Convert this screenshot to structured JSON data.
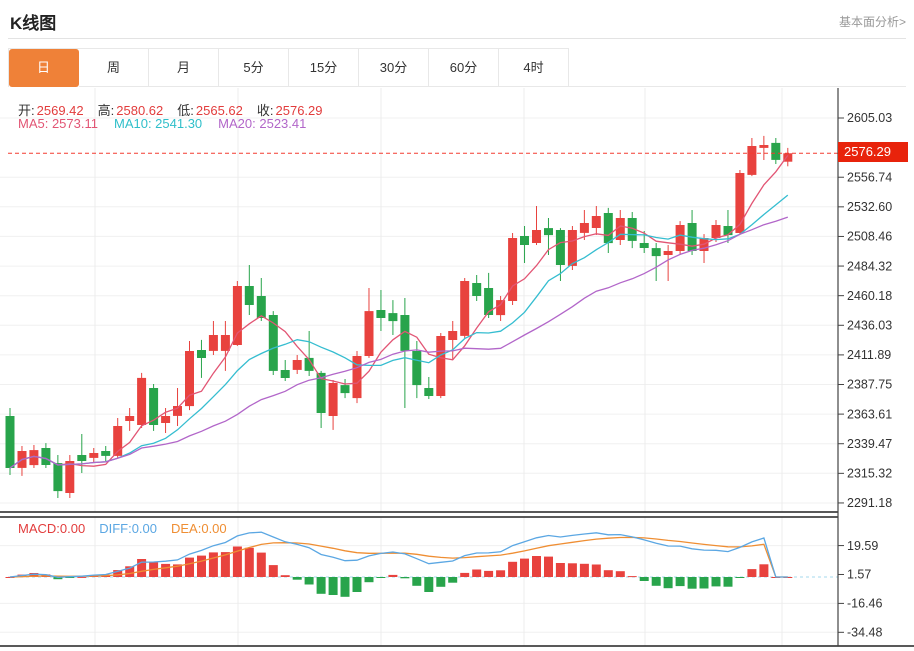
{
  "header": {
    "title": "K线图",
    "link": "基本面分析>"
  },
  "tabs": {
    "items": [
      "日",
      "周",
      "月",
      "5分",
      "15分",
      "30分",
      "60分",
      "4时"
    ],
    "active_index": 0,
    "active_bg": "#ef8138"
  },
  "info": {
    "ohlc": [
      {
        "label": "开:",
        "value": "2569.42"
      },
      {
        "label": "高:",
        "value": "2580.62"
      },
      {
        "label": "低:",
        "value": "2565.62"
      },
      {
        "label": "收:",
        "value": "2576.29"
      }
    ],
    "ma": [
      {
        "label": "MA5:",
        "value": "2573.11",
        "color": "#e25574"
      },
      {
        "label": "MA10:",
        "value": "2541.30",
        "color": "#2fbfca"
      },
      {
        "label": "MA20:",
        "value": "2523.41",
        "color": "#b266c9"
      }
    ]
  },
  "macd_panel": {
    "labels": [
      {
        "label": "MACD:",
        "value": "0.00",
        "color": "#e23c3c"
      },
      {
        "label": "DIFF:",
        "value": "0.00",
        "color": "#5ba7e3"
      },
      {
        "label": "DEA:",
        "value": "0.00",
        "color": "#ef8e33"
      }
    ],
    "axis_ticks": [
      "19.59",
      "1.57",
      "-16.46",
      "-34.48"
    ]
  },
  "colors": {
    "up": "#e8423e",
    "down": "#28a44b",
    "ma5": "#e25574",
    "ma10": "#35bdd0",
    "ma20": "#b266c9",
    "diff_line": "#5ba7e3",
    "dea_line": "#ef8e33",
    "current_line": "#f43b30",
    "tag_bg": "#e8230b",
    "grid": "#f0f0f0",
    "vgrid": "#ececec",
    "axis": "#444",
    "axis_text": "#333",
    "baseline_dash": "#a6d9ec",
    "panel_border": "#222"
  },
  "chart_data": {
    "type": "candlestick",
    "title": "K线图",
    "period": "日",
    "legend": [
      "MA5",
      "MA10",
      "MA20",
      "MACD",
      "DIFF",
      "DEA"
    ],
    "current_price": "2576.29",
    "y_axis_ticks": [
      "2605.03",
      "2556.74",
      "2532.60",
      "2508.46",
      "2484.32",
      "2460.18",
      "2436.03",
      "2411.89",
      "2387.75",
      "2363.61",
      "2339.47",
      "2315.32",
      "2291.18"
    ],
    "macd_axis_ticks": [
      "19.59",
      "1.57",
      "-16.46",
      "-34.48"
    ],
    "candles_ohlc": [
      [
        2362.1,
        2368.6,
        2314.0,
        2319.7
      ],
      [
        2319.7,
        2337.6,
        2313.2,
        2333.5
      ],
      [
        2322.1,
        2338.4,
        2319.7,
        2334.3
      ],
      [
        2336.0,
        2340.0,
        2319.7,
        2322.1
      ],
      [
        2323.7,
        2330.3,
        2295.2,
        2300.9
      ],
      [
        2299.3,
        2330.3,
        2295.2,
        2325.4
      ],
      [
        2330.3,
        2347.4,
        2315.6,
        2325.4
      ],
      [
        2327.9,
        2336.0,
        2323.7,
        2331.9
      ],
      [
        2333.5,
        2337.6,
        2325.4,
        2329.5
      ],
      [
        2329.5,
        2360.4,
        2327.9,
        2353.9
      ],
      [
        2358.0,
        2368.6,
        2349.9,
        2362.1
      ],
      [
        2354.7,
        2397.2,
        2352.3,
        2393.1
      ],
      [
        2384.9,
        2388.2,
        2349.9,
        2354.7
      ],
      [
        2356.4,
        2368.6,
        2348.2,
        2362.1
      ],
      [
        2362.1,
        2384.9,
        2353.9,
        2370.2
      ],
      [
        2370.2,
        2423.2,
        2366.9,
        2415.1
      ],
      [
        2415.9,
        2424.1,
        2393.1,
        2409.4
      ],
      [
        2415.1,
        2439.5,
        2411.8,
        2428.1
      ],
      [
        2415.1,
        2439.5,
        2398.8,
        2428.1
      ],
      [
        2420.0,
        2472.1,
        2419.2,
        2468.1
      ],
      [
        2468.1,
        2485.2,
        2444.4,
        2452.6
      ],
      [
        2459.9,
        2474.6,
        2439.5,
        2442.0
      ],
      [
        2444.4,
        2447.6,
        2395.5,
        2398.8
      ],
      [
        2399.6,
        2407.7,
        2390.6,
        2393.1
      ],
      [
        2399.6,
        2411.8,
        2396.3,
        2407.7
      ],
      [
        2409.4,
        2431.4,
        2394.7,
        2398.8
      ],
      [
        2397.2,
        2398.8,
        2352.3,
        2364.5
      ],
      [
        2362.1,
        2391.4,
        2350.7,
        2389.0
      ],
      [
        2387.3,
        2392.2,
        2376.7,
        2380.8
      ],
      [
        2376.7,
        2415.1,
        2372.6,
        2411.0
      ],
      [
        2411.0,
        2466.4,
        2409.4,
        2447.6
      ],
      [
        2448.5,
        2464.8,
        2431.4,
        2442.0
      ],
      [
        2446.0,
        2456.6,
        2428.1,
        2439.5
      ],
      [
        2444.4,
        2458.3,
        2368.6,
        2415.1
      ],
      [
        2415.1,
        2423.2,
        2376.7,
        2387.3
      ],
      [
        2384.9,
        2393.9,
        2375.9,
        2378.4
      ],
      [
        2378.4,
        2429.7,
        2376.7,
        2427.3
      ],
      [
        2424.1,
        2439.5,
        2407.7,
        2431.4
      ],
      [
        2427.3,
        2474.6,
        2425.6,
        2472.1
      ],
      [
        2470.5,
        2477.0,
        2455.8,
        2459.9
      ],
      [
        2466.4,
        2478.7,
        2442.0,
        2444.4
      ],
      [
        2444.4,
        2459.9,
        2439.5,
        2456.6
      ],
      [
        2455.8,
        2511.3,
        2452.6,
        2507.2
      ],
      [
        2508.8,
        2517.0,
        2486.8,
        2501.5
      ],
      [
        2503.1,
        2533.3,
        2501.5,
        2513.7
      ],
      [
        2515.3,
        2523.5,
        2493.3,
        2509.6
      ],
      [
        2513.7,
        2515.3,
        2472.1,
        2485.2
      ],
      [
        2484.4,
        2517.0,
        2481.1,
        2513.7
      ],
      [
        2511.3,
        2530.0,
        2505.6,
        2519.4
      ],
      [
        2515.3,
        2533.3,
        2509.6,
        2525.1
      ],
      [
        2527.6,
        2531.7,
        2495.0,
        2503.1
      ],
      [
        2505.6,
        2530.0,
        2501.5,
        2523.5
      ],
      [
        2523.5,
        2528.4,
        2499.0,
        2504.8
      ],
      [
        2503.1,
        2512.9,
        2495.0,
        2499.0
      ],
      [
        2499.0,
        2503.1,
        2472.1,
        2492.5
      ],
      [
        2493.3,
        2501.5,
        2472.1,
        2496.6
      ],
      [
        2496.6,
        2521.0,
        2493.3,
        2517.8
      ],
      [
        2519.4,
        2530.0,
        2493.3,
        2496.6
      ],
      [
        2496.6,
        2510.4,
        2486.8,
        2507.2
      ],
      [
        2507.2,
        2521.9,
        2503.9,
        2517.8
      ],
      [
        2517.0,
        2530.0,
        2503.1,
        2509.6
      ],
      [
        2511.3,
        2562.6,
        2509.6,
        2560.2
      ],
      [
        2558.6,
        2588.7,
        2557.7,
        2582.2
      ],
      [
        2580.6,
        2590.4,
        2570.8,
        2583.0
      ],
      [
        2584.7,
        2588.7,
        2567.5,
        2570.8
      ],
      [
        2569.42,
        2580.62,
        2565.62,
        2576.29
      ]
    ]
  }
}
